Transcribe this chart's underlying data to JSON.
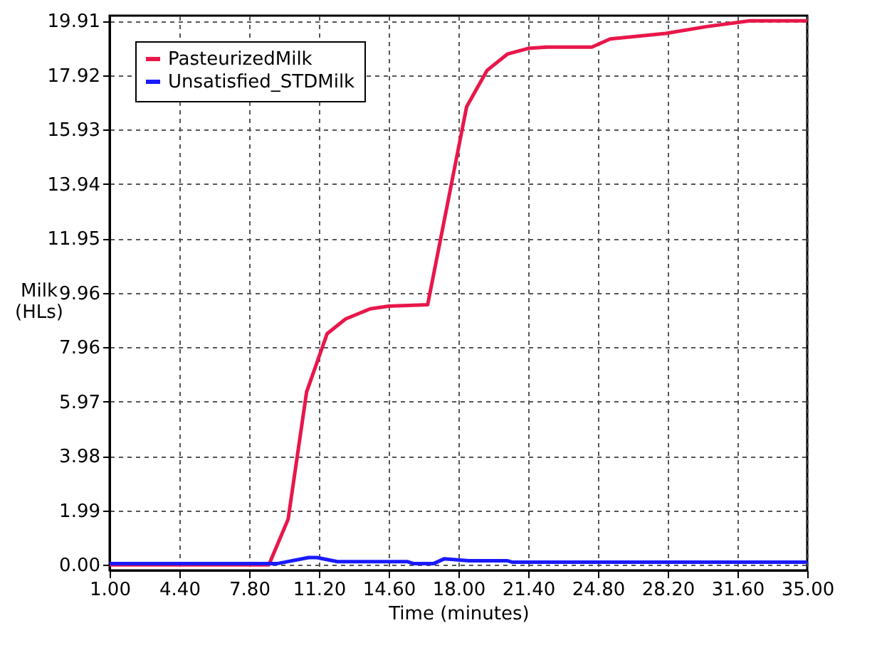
{
  "chart_data": {
    "type": "line",
    "xlabel": "Time (minutes)",
    "ylabel": "Milk (HLs)",
    "xlim": [
      1,
      35
    ],
    "xticks": [
      {
        "value": 1,
        "label": "1.00"
      },
      {
        "value": 4.4,
        "label": "4.40"
      },
      {
        "value": 7.8,
        "label": "7.80"
      },
      {
        "value": 11.2,
        "label": "11.20"
      },
      {
        "value": 14.6,
        "label": "14.60"
      },
      {
        "value": 18,
        "label": "18.00"
      },
      {
        "value": 21.4,
        "label": "21.40"
      },
      {
        "value": 24.8,
        "label": "24.80"
      },
      {
        "value": 28.2,
        "label": "28.20"
      },
      {
        "value": 31.6,
        "label": "31.60"
      },
      {
        "value": 35,
        "label": "35.00"
      }
    ],
    "ylim": [
      -0.2,
      20.1
    ],
    "yticks": [
      {
        "value": 0,
        "label": "0.00"
      },
      {
        "value": 1.99,
        "label": "1.99"
      },
      {
        "value": 3.98,
        "label": "3.98"
      },
      {
        "value": 5.97,
        "label": "5.97"
      },
      {
        "value": 7.96,
        "label": "7.96"
      },
      {
        "value": 9.96,
        "label": "9.96"
      },
      {
        "value": 11.95,
        "label": "11.95"
      },
      {
        "value": 13.94,
        "label": "13.94"
      },
      {
        "value": 15.93,
        "label": "15.93"
      },
      {
        "value": 17.92,
        "label": "17.92"
      },
      {
        "value": 19.91,
        "label": "19.91"
      }
    ],
    "grid": true,
    "legend": "top left",
    "marker": "none",
    "line_style": "solid",
    "series": [
      {
        "name": "PasteurizedMilk",
        "color": "#e8174a",
        "x": [
          1,
          8.76,
          9.7,
          10.6,
          11.6,
          12.5,
          13.7,
          14.6,
          16.5,
          18.4,
          19.4,
          20.4,
          21.4,
          22.3,
          24.5,
          25.4,
          28.1,
          30.1,
          32.2,
          35
        ],
        "values": [
          0,
          0,
          1.67,
          6.33,
          8.46,
          9.0,
          9.37,
          9.47,
          9.52,
          16.77,
          18.1,
          18.7,
          18.9,
          18.95,
          18.95,
          19.25,
          19.45,
          19.7,
          19.91,
          19.91
        ]
      },
      {
        "name": "Unsatisfied_STDMilk",
        "color": "#1a1aff",
        "x": [
          1,
          9.2,
          10.7,
          11.1,
          12.1,
          15.5,
          15.8,
          16.8,
          17.3,
          18.5,
          20.4,
          20.6,
          35
        ],
        "values": [
          0.05,
          0.05,
          0.27,
          0.27,
          0.12,
          0.12,
          0.05,
          0.05,
          0.22,
          0.15,
          0.15,
          0.1,
          0.1
        ]
      }
    ]
  }
}
